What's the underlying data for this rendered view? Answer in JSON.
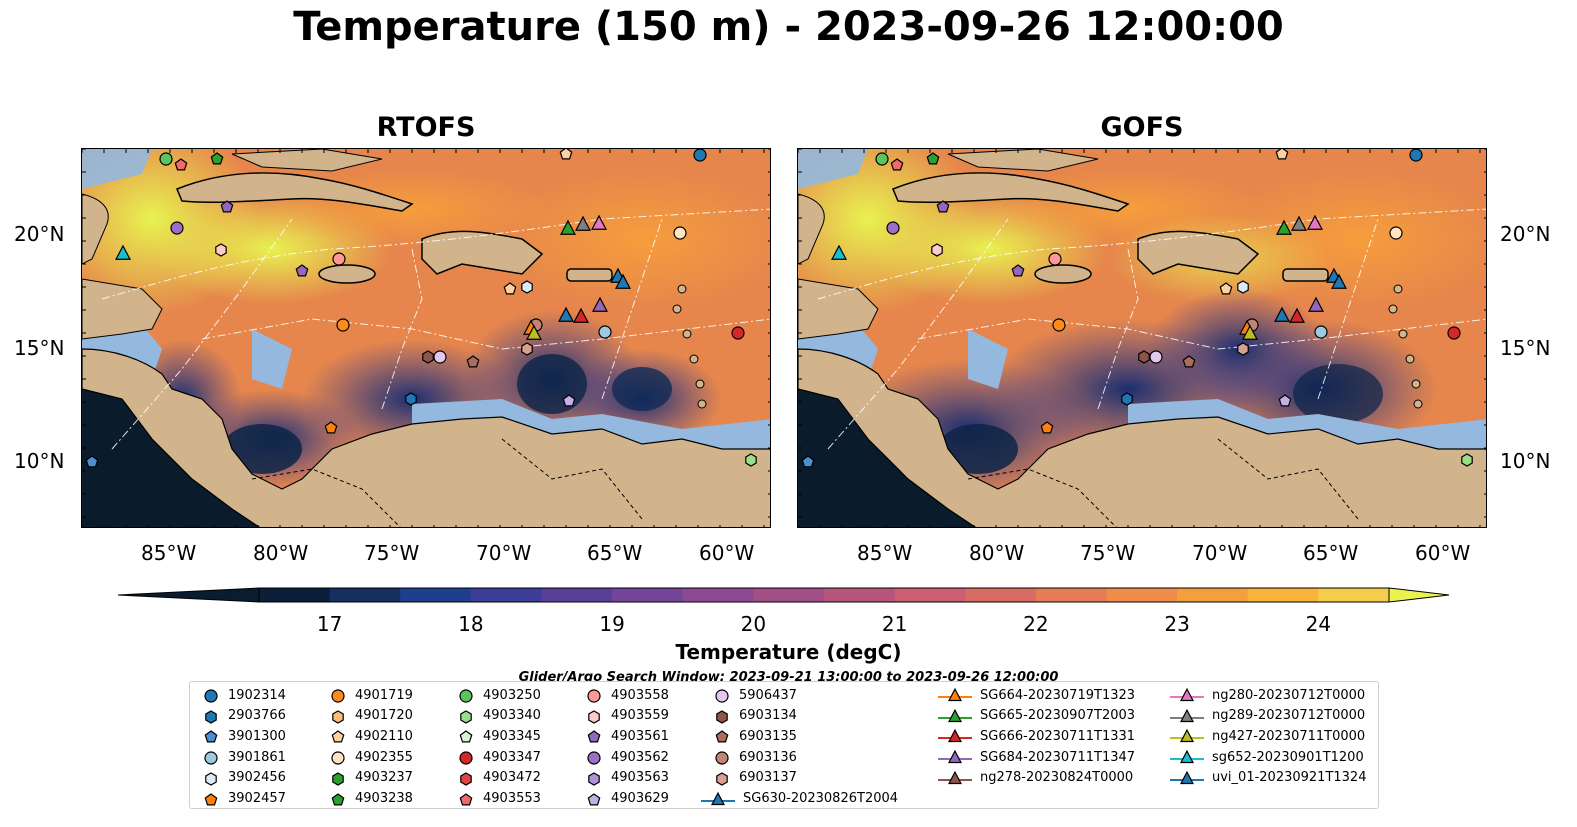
{
  "title": "Temperature (150 m) - 2023-09-26 12:00:00",
  "panels": [
    {
      "name": "RTOFS"
    },
    {
      "name": "GOFS"
    }
  ],
  "lon_labels": [
    "85°W",
    "80°W",
    "75°W",
    "70°W",
    "65°W",
    "60°W"
  ],
  "lat_labels": [
    "20°N",
    "15°N",
    "10°N"
  ],
  "colorbar": {
    "label": "Temperature (degC)",
    "ticks": [
      "17",
      "18",
      "19",
      "20",
      "21",
      "22",
      "23",
      "24"
    ],
    "vmin": 16.5,
    "vmax": 24.5,
    "colors": [
      "#0b1e3a",
      "#13305f",
      "#1f3f8c",
      "#3b3d97",
      "#5a3f96",
      "#74469a",
      "#8c4a92",
      "#a24f88",
      "#b8557c",
      "#c95f70",
      "#d86b62",
      "#e67c55",
      "#ef8d48",
      "#f59e3c",
      "#f8b33a",
      "#f4cd4a"
    ],
    "extend_low": "#0a1c30",
    "extend_high": "#e8f250"
  },
  "search_window": "Glider/Argo Search Window: 2023-09-21 13:00:00 to 2023-09-26 12:00:00",
  "legend": {
    "floats": [
      {
        "id": "1902314",
        "shape": "circle",
        "color": "#1f77b4"
      },
      {
        "id": "2903766",
        "shape": "hexagon",
        "color": "#1f77b4"
      },
      {
        "id": "3901300",
        "shape": "pentagon",
        "color": "#4a8fd0"
      },
      {
        "id": "3901861",
        "shape": "circle",
        "color": "#9ecae1"
      },
      {
        "id": "3902456",
        "shape": "hexagon",
        "color": "#d9ecf7"
      },
      {
        "id": "3902457",
        "shape": "pentagon",
        "color": "#ff7f0e"
      },
      {
        "id": "4901719",
        "shape": "circle",
        "color": "#ff8c1a"
      },
      {
        "id": "4901720",
        "shape": "hexagon",
        "color": "#ffbb78"
      },
      {
        "id": "4902110",
        "shape": "pentagon",
        "color": "#ffd0a0"
      },
      {
        "id": "4902355",
        "shape": "circle",
        "color": "#ffe4c4"
      },
      {
        "id": "4903237",
        "shape": "hexagon",
        "color": "#2ca02c"
      },
      {
        "id": "4903238",
        "shape": "pentagon",
        "color": "#2ca02c"
      },
      {
        "id": "4903250",
        "shape": "circle",
        "color": "#5cc45c"
      },
      {
        "id": "4903340",
        "shape": "hexagon",
        "color": "#98df8a"
      },
      {
        "id": "4903345",
        "shape": "pentagon",
        "color": "#d8f5cf"
      },
      {
        "id": "4903347",
        "shape": "circle",
        "color": "#d62728"
      },
      {
        "id": "4903472",
        "shape": "hexagon",
        "color": "#e04444"
      },
      {
        "id": "4903553",
        "shape": "pentagon",
        "color": "#f06a6a"
      },
      {
        "id": "4903558",
        "shape": "circle",
        "color": "#ff9896"
      },
      {
        "id": "4903559",
        "shape": "hexagon",
        "color": "#ffc9c7"
      },
      {
        "id": "4903561",
        "shape": "pentagon",
        "color": "#9467bd"
      },
      {
        "id": "4903562",
        "shape": "circle",
        "color": "#9a6fc4"
      },
      {
        "id": "4903563",
        "shape": "hexagon",
        "color": "#b293d6"
      },
      {
        "id": "4903629",
        "shape": "pentagon",
        "color": "#c5b0e6"
      },
      {
        "id": "5906437",
        "shape": "circle",
        "color": "#e2c8f0"
      },
      {
        "id": "6903134",
        "shape": "hexagon",
        "color": "#8c564b"
      },
      {
        "id": "6903135",
        "shape": "pentagon",
        "color": "#a86e5e"
      },
      {
        "id": "6903136",
        "shape": "circle",
        "color": "#c28474"
      },
      {
        "id": "6903137",
        "shape": "hexagon",
        "color": "#d9a08f"
      }
    ],
    "gliders": [
      {
        "id": "SG630-20230826T2004",
        "color": "#1f77b4"
      },
      {
        "id": "SG664-20230719T1323",
        "color": "#ff7f0e"
      },
      {
        "id": "SG665-20230907T2003",
        "color": "#2ca02c"
      },
      {
        "id": "SG666-20230711T1331",
        "color": "#d62728"
      },
      {
        "id": "SG684-20230711T1347",
        "color": "#9467bd"
      },
      {
        "id": "ng278-20230824T0000",
        "color": "#8c564b"
      },
      {
        "id": "ng280-20230712T0000",
        "color": "#e377c2"
      },
      {
        "id": "ng289-20230712T0000",
        "color": "#7f7f7f"
      },
      {
        "id": "ng427-20230711T0000",
        "color": "#bcbd22"
      },
      {
        "id": "sg652-20230901T1200",
        "color": "#17becf"
      },
      {
        "id": "uvi_01-20230921T1324",
        "color": "#1f77b4"
      }
    ]
  }
}
